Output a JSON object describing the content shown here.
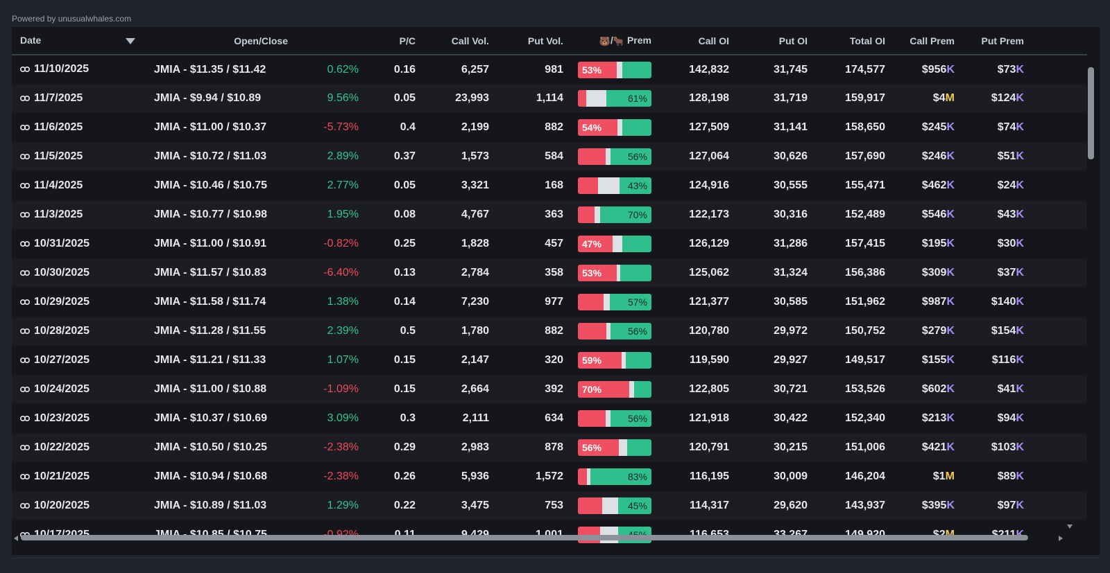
{
  "powered_by": "Powered by unusualwhales.com",
  "columns": {
    "date": "Date",
    "open_close": "Open/Close",
    "pc": "P/C",
    "call_vol": "Call Vol.",
    "put_vol": "Put Vol.",
    "prem_sep": "/",
    "prem_label": "Prem",
    "call_oi": "Call OI",
    "put_oi": "Put OI",
    "total_oi": "Total OI",
    "call_prem": "Call Prem",
    "put_prem": "Put Prem"
  },
  "emoji": {
    "bear": "🐻",
    "bull": "🐂"
  },
  "colors": {
    "bear": "#ef4f61",
    "neutral": "#dde1e6",
    "bull": "#2fbf8c",
    "positive": "#34c58d",
    "negative": "#f0495b",
    "unit_k": "#a98cf5",
    "unit_m": "#f2c94c"
  },
  "rows": [
    {
      "date": "11/10/2025",
      "open_close": "JMIA - $11.35 / $11.42",
      "change": "0.62%",
      "dir": "pos",
      "pc": "0.16",
      "call_vol": "6,257",
      "put_vol": "981",
      "bear": 53,
      "bull": 40,
      "bear_label": "53%",
      "bull_label": "",
      "call_oi": "142,832",
      "put_oi": "31,745",
      "total_oi": "174,577",
      "call_prem": "$956",
      "call_unit": "K",
      "put_prem": "$73",
      "put_unit": "K"
    },
    {
      "date": "11/7/2025",
      "open_close": "JMIA - $9.94 / $10.89",
      "change": "9.56%",
      "dir": "pos",
      "pc": "0.05",
      "call_vol": "23,993",
      "put_vol": "1,114",
      "bear": 11,
      "bull": 61,
      "bear_label": "",
      "bull_label": "61%",
      "call_oi": "128,198",
      "put_oi": "31,719",
      "total_oi": "159,917",
      "call_prem": "$4",
      "call_unit": "M",
      "put_prem": "$124",
      "put_unit": "K"
    },
    {
      "date": "11/6/2025",
      "open_close": "JMIA - $11.00 / $10.37",
      "change": "-5.73%",
      "dir": "neg",
      "pc": "0.4",
      "call_vol": "2,199",
      "put_vol": "882",
      "bear": 54,
      "bull": 40,
      "bear_label": "54%",
      "bull_label": "",
      "call_oi": "127,509",
      "put_oi": "31,141",
      "total_oi": "158,650",
      "call_prem": "$245",
      "call_unit": "K",
      "put_prem": "$74",
      "put_unit": "K"
    },
    {
      "date": "11/5/2025",
      "open_close": "JMIA - $10.72 / $11.03",
      "change": "2.89%",
      "dir": "pos",
      "pc": "0.37",
      "call_vol": "1,573",
      "put_vol": "584",
      "bear": 38,
      "bull": 56,
      "bear_label": "",
      "bull_label": "56%",
      "call_oi": "127,064",
      "put_oi": "30,626",
      "total_oi": "157,690",
      "call_prem": "$246",
      "call_unit": "K",
      "put_prem": "$51",
      "put_unit": "K"
    },
    {
      "date": "11/4/2025",
      "open_close": "JMIA - $10.46 / $10.75",
      "change": "2.77%",
      "dir": "pos",
      "pc": "0.05",
      "call_vol": "3,321",
      "put_vol": "168",
      "bear": 27,
      "bull": 43,
      "bear_label": "",
      "bull_label": "43%",
      "call_oi": "124,916",
      "put_oi": "30,555",
      "total_oi": "155,471",
      "call_prem": "$462",
      "call_unit": "K",
      "put_prem": "$24",
      "put_unit": "K"
    },
    {
      "date": "11/3/2025",
      "open_close": "JMIA - $10.77 / $10.98",
      "change": "1.95%",
      "dir": "pos",
      "pc": "0.08",
      "call_vol": "4,767",
      "put_vol": "363",
      "bear": 23,
      "bull": 70,
      "bear_label": "",
      "bull_label": "70%",
      "call_oi": "122,173",
      "put_oi": "30,316",
      "total_oi": "152,489",
      "call_prem": "$546",
      "call_unit": "K",
      "put_prem": "$43",
      "put_unit": "K"
    },
    {
      "date": "10/31/2025",
      "open_close": "JMIA - $11.00 / $10.91",
      "change": "-0.82%",
      "dir": "neg",
      "pc": "0.25",
      "call_vol": "1,828",
      "put_vol": "457",
      "bear": 47,
      "bull": 40,
      "bear_label": "47%",
      "bull_label": "",
      "call_oi": "126,129",
      "put_oi": "31,286",
      "total_oi": "157,415",
      "call_prem": "$195",
      "call_unit": "K",
      "put_prem": "$30",
      "put_unit": "K"
    },
    {
      "date": "10/30/2025",
      "open_close": "JMIA - $11.57 / $10.83",
      "change": "-6.40%",
      "dir": "neg",
      "pc": "0.13",
      "call_vol": "2,784",
      "put_vol": "358",
      "bear": 53,
      "bull": 42,
      "bear_label": "53%",
      "bull_label": "",
      "call_oi": "125,062",
      "put_oi": "31,324",
      "total_oi": "156,386",
      "call_prem": "$309",
      "call_unit": "K",
      "put_prem": "$37",
      "put_unit": "K"
    },
    {
      "date": "10/29/2025",
      "open_close": "JMIA - $11.58 / $11.74",
      "change": "1.38%",
      "dir": "pos",
      "pc": "0.14",
      "call_vol": "7,230",
      "put_vol": "977",
      "bear": 35,
      "bull": 57,
      "bear_label": "",
      "bull_label": "57%",
      "call_oi": "121,377",
      "put_oi": "30,585",
      "total_oi": "151,962",
      "call_prem": "$987",
      "call_unit": "K",
      "put_prem": "$140",
      "put_unit": "K"
    },
    {
      "date": "10/28/2025",
      "open_close": "JMIA - $11.28 / $11.55",
      "change": "2.39%",
      "dir": "pos",
      "pc": "0.5",
      "call_vol": "1,780",
      "put_vol": "882",
      "bear": 39,
      "bull": 56,
      "bear_label": "",
      "bull_label": "56%",
      "call_oi": "120,780",
      "put_oi": "29,972",
      "total_oi": "150,752",
      "call_prem": "$279",
      "call_unit": "K",
      "put_prem": "$154",
      "put_unit": "K"
    },
    {
      "date": "10/27/2025",
      "open_close": "JMIA - $11.21 / $11.33",
      "change": "1.07%",
      "dir": "pos",
      "pc": "0.15",
      "call_vol": "2,147",
      "put_vol": "320",
      "bear": 59,
      "bull": 35,
      "bear_label": "59%",
      "bull_label": "",
      "call_oi": "119,590",
      "put_oi": "29,927",
      "total_oi": "149,517",
      "call_prem": "$155",
      "call_unit": "K",
      "put_prem": "$116",
      "put_unit": "K"
    },
    {
      "date": "10/24/2025",
      "open_close": "JMIA - $11.00 / $10.88",
      "change": "-1.09%",
      "dir": "neg",
      "pc": "0.15",
      "call_vol": "2,664",
      "put_vol": "392",
      "bear": 70,
      "bull": 24,
      "bear_label": "70%",
      "bull_label": "",
      "call_oi": "122,805",
      "put_oi": "30,721",
      "total_oi": "153,526",
      "call_prem": "$602",
      "call_unit": "K",
      "put_prem": "$41",
      "put_unit": "K"
    },
    {
      "date": "10/23/2025",
      "open_close": "JMIA - $10.37 / $10.69",
      "change": "3.09%",
      "dir": "pos",
      "pc": "0.3",
      "call_vol": "2,111",
      "put_vol": "634",
      "bear": 38,
      "bull": 56,
      "bear_label": "",
      "bull_label": "56%",
      "call_oi": "121,918",
      "put_oi": "30,422",
      "total_oi": "152,340",
      "call_prem": "$213",
      "call_unit": "K",
      "put_prem": "$94",
      "put_unit": "K"
    },
    {
      "date": "10/22/2025",
      "open_close": "JMIA - $10.50 / $10.25",
      "change": "-2.38%",
      "dir": "neg",
      "pc": "0.29",
      "call_vol": "2,983",
      "put_vol": "878",
      "bear": 56,
      "bull": 33,
      "bear_label": "56%",
      "bull_label": "",
      "call_oi": "120,791",
      "put_oi": "30,215",
      "total_oi": "151,006",
      "call_prem": "$421",
      "call_unit": "K",
      "put_prem": "$103",
      "put_unit": "K"
    },
    {
      "date": "10/21/2025",
      "open_close": "JMIA - $10.94 / $10.68",
      "change": "-2.38%",
      "dir": "neg",
      "pc": "0.26",
      "call_vol": "5,936",
      "put_vol": "1,572",
      "bear": 12,
      "bull": 83,
      "bear_label": "",
      "bull_label": "83%",
      "call_oi": "116,195",
      "put_oi": "30,009",
      "total_oi": "146,204",
      "call_prem": "$1",
      "call_unit": "M",
      "put_prem": "$89",
      "put_unit": "K"
    },
    {
      "date": "10/20/2025",
      "open_close": "JMIA - $10.89 / $11.03",
      "change": "1.29%",
      "dir": "pos",
      "pc": "0.22",
      "call_vol": "3,475",
      "put_vol": "753",
      "bear": 33,
      "bull": 45,
      "bear_label": "",
      "bull_label": "45%",
      "call_oi": "114,317",
      "put_oi": "29,620",
      "total_oi": "143,937",
      "call_prem": "$395",
      "call_unit": "K",
      "put_prem": "$97",
      "put_unit": "K"
    },
    {
      "date": "10/17/2025",
      "open_close": "JMIA - $10.85 / $10.75",
      "change": "-0.92%",
      "dir": "neg",
      "pc": "0.11",
      "call_vol": "9,429",
      "put_vol": "1,001",
      "bear": 30,
      "bull": 45,
      "bear_label": "",
      "bull_label": "45%",
      "call_oi": "116,653",
      "put_oi": "33,267",
      "total_oi": "149,920",
      "call_prem": "$2",
      "call_unit": "M",
      "put_prem": "$211",
      "put_unit": "K"
    }
  ]
}
